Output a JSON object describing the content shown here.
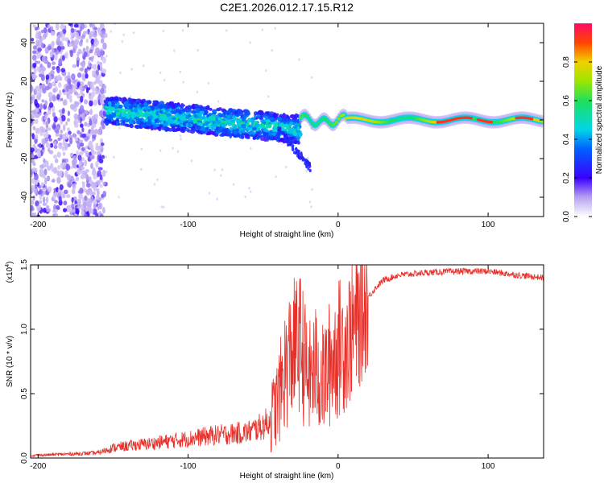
{
  "title": "C2E1.2026.012.17.15.R12",
  "chart_data": [
    {
      "type": "heatmap",
      "name": "spectrogram",
      "xlabel": "Height of straight line (km)",
      "ylabel": "Frequency (Hz)",
      "xlim": [
        -205,
        137
      ],
      "ylim": [
        -50,
        50
      ],
      "xticks": [
        -200,
        -100,
        0,
        100
      ],
      "yticks": [
        -40,
        -20,
        0,
        20,
        40
      ],
      "colorbar": {
        "label": "Normalized spectral amplitude",
        "range": [
          0,
          1
        ],
        "ticks": [
          0.0,
          0.2,
          0.4,
          0.6,
          0.8
        ],
        "tick_labels": [
          "0.0",
          "0.2",
          "0.4",
          "0.6",
          "0.8"
        ]
      },
      "features": [
        {
          "region": "noise",
          "x": [
            -205,
            -155
          ],
          "freq": [
            -50,
            50
          ],
          "amplitude": 0.1
        },
        {
          "region": "clustered band",
          "x": [
            -155,
            -25
          ],
          "freq_center": [
            5,
            -5
          ],
          "amplitude": 0.35
        },
        {
          "region": "descending branch",
          "x": [
            -40,
            -18
          ],
          "freq_end": -25,
          "amplitude": 0.25
        },
        {
          "region": "steady tone",
          "x": [
            -25,
            137
          ],
          "freq_center": 0,
          "amplitude": 0.9
        }
      ]
    },
    {
      "type": "line",
      "name": "snr",
      "xlabel": "Height of straight line (km)",
      "ylabel": "SNR (10 * v/v)",
      "y_scale_label": "(x10",
      "y_scale_exp": "4",
      "xlim": [
        -205,
        137
      ],
      "ylim": [
        0,
        1.5
      ],
      "xticks": [
        -200,
        -100,
        0,
        100
      ],
      "yticks": [
        0.0,
        0.5,
        1.0,
        1.5
      ],
      "ytick_labels": [
        "0.0",
        "0.5",
        "1.0",
        "1.5"
      ],
      "color": "#e8302a",
      "series": [
        {
          "name": "SNR",
          "x": [
            -205,
            -160,
            -150,
            -120,
            -100,
            -80,
            -60,
            -50,
            -45,
            -40,
            -35,
            -30,
            -25,
            -20,
            -15,
            -10,
            -5,
            0,
            5,
            10,
            15,
            20,
            25,
            30,
            40,
            50,
            60,
            80,
            100,
            120,
            137
          ],
          "values": [
            0.02,
            0.04,
            0.08,
            0.12,
            0.15,
            0.18,
            0.2,
            0.25,
            0.3,
            0.45,
            0.7,
            0.85,
            0.9,
            0.6,
            0.7,
            0.6,
            0.75,
            0.85,
            0.9,
            1.0,
            1.1,
            1.25,
            1.32,
            1.38,
            1.42,
            1.43,
            1.44,
            1.45,
            1.45,
            1.42,
            1.4
          ]
        }
      ]
    }
  ]
}
